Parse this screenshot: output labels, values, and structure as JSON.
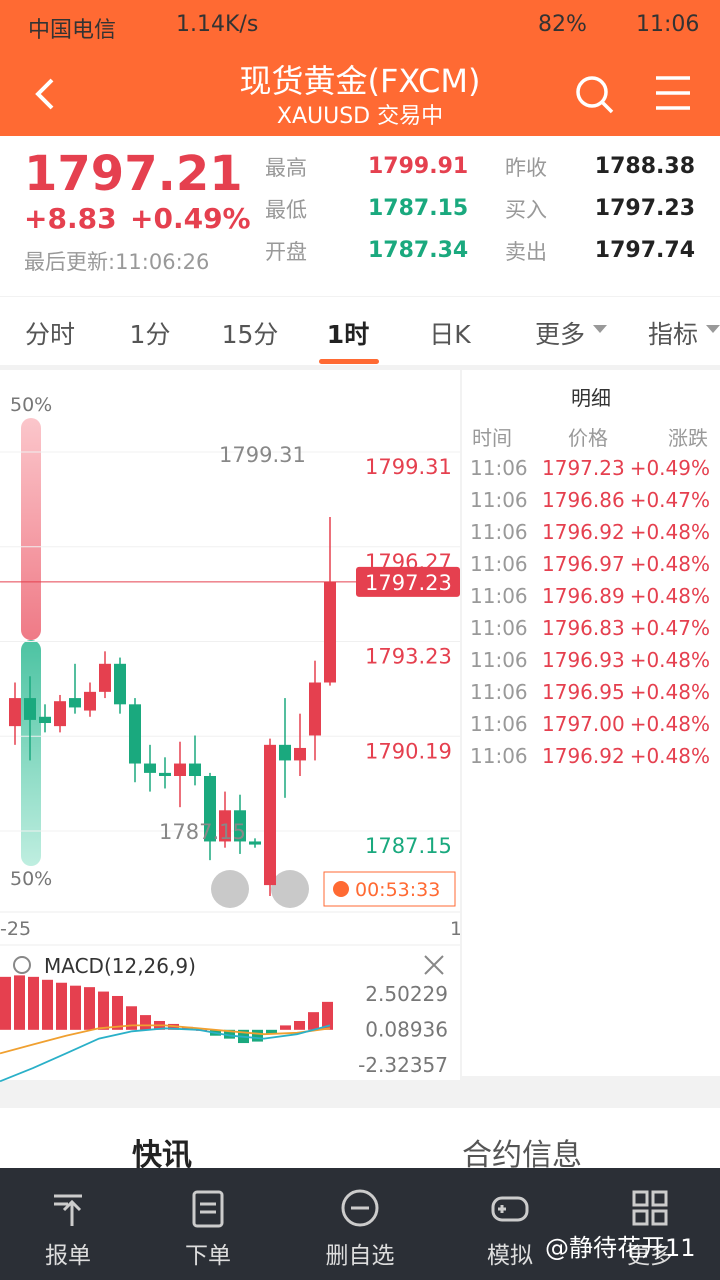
{
  "status_bar": {
    "carrier": "中国电信",
    "speed": "1.14K/s",
    "battery": "82%",
    "time": "11:06"
  },
  "header": {
    "title": "现货黄金(FXCM)",
    "subtitle": "XAUUSD 交易中"
  },
  "quote": {
    "price": "1797.21",
    "change": "+8.83",
    "change_pct": "+0.49%",
    "updated": "最后更新:11:06:26",
    "stats": [
      {
        "label": "最高",
        "value": "1799.91"
      },
      {
        "label": "最低",
        "value": "1787.15"
      },
      {
        "label": "开盘",
        "value": "1787.34"
      },
      {
        "label": "昨收",
        "value": "1788.38"
      },
      {
        "label": "买入",
        "value": "1797.23"
      },
      {
        "label": "卖出",
        "value": "1797.74"
      }
    ]
  },
  "tabs": [
    "分时",
    "1分",
    "15分",
    "1时",
    "日K",
    "更多",
    "指标"
  ],
  "chart": {
    "type": "candlestick",
    "ratio_top": "50%",
    "ratio_bottom": "50%",
    "price_ticks": [
      1799.31,
      1796.27,
      1793.23,
      1790.19,
      1787.15
    ],
    "current_price": 1797.23,
    "high_label": "1799.31",
    "low_label": "1787.15",
    "countdown": "00:53:33",
    "x_labels": [
      "-25",
      "1"
    ],
    "candles": [
      [
        1792.6,
        1793.5,
        1794.0,
        1792.0
      ],
      [
        1793.5,
        1792.8,
        1794.2,
        1791.5
      ],
      [
        1792.9,
        1792.7,
        1793.3,
        1792.4
      ],
      [
        1792.6,
        1793.4,
        1793.6,
        1792.4
      ],
      [
        1793.5,
        1793.2,
        1794.6,
        1793.0
      ],
      [
        1793.1,
        1793.7,
        1794.0,
        1792.9
      ],
      [
        1793.7,
        1794.6,
        1795.0,
        1793.5
      ],
      [
        1794.6,
        1793.3,
        1794.8,
        1793.0
      ],
      [
        1793.3,
        1791.4,
        1793.5,
        1790.8
      ],
      [
        1791.4,
        1791.1,
        1792.0,
        1790.5
      ],
      [
        1791.1,
        1791.0,
        1791.6,
        1790.6
      ],
      [
        1791.0,
        1791.4,
        1792.1,
        1790.0
      ],
      [
        1791.4,
        1791.0,
        1792.3,
        1790.7
      ],
      [
        1791.0,
        1788.9,
        1791.1,
        1788.3
      ],
      [
        1788.9,
        1789.9,
        1790.5,
        1788.7
      ],
      [
        1789.9,
        1788.9,
        1790.4,
        1788.5
      ],
      [
        1788.9,
        1788.8,
        1789.0,
        1788.7
      ],
      [
        1787.5,
        1792.0,
        1792.2,
        1787.15
      ],
      [
        1792.0,
        1791.5,
        1793.5,
        1790.3
      ],
      [
        1791.5,
        1791.9,
        1793.0,
        1791.0
      ],
      [
        1792.3,
        1794.0,
        1794.7,
        1791.5
      ],
      [
        1794.0,
        1797.23,
        1799.31,
        1793.9
      ]
    ]
  },
  "detail": {
    "title": "明细",
    "columns": [
      "时间",
      "价格",
      "涨跌"
    ],
    "rows": [
      [
        "11:06",
        "1797.23",
        "+0.49%"
      ],
      [
        "11:06",
        "1796.86",
        "+0.47%"
      ],
      [
        "11:06",
        "1796.92",
        "+0.48%"
      ],
      [
        "11:06",
        "1796.97",
        "+0.48%"
      ],
      [
        "11:06",
        "1796.89",
        "+0.48%"
      ],
      [
        "11:06",
        "1796.83",
        "+0.47%"
      ],
      [
        "11:06",
        "1796.93",
        "+0.48%"
      ],
      [
        "11:06",
        "1796.95",
        "+0.48%"
      ],
      [
        "11:06",
        "1797.00",
        "+0.48%"
      ],
      [
        "11:06",
        "1796.92",
        "+0.48%"
      ]
    ]
  },
  "macd": {
    "title": "MACD(12,26,9)",
    "ticks": [
      2.50229,
      0.08936,
      -2.32357
    ],
    "histogram": [
      3.6,
      3.7,
      3.6,
      3.4,
      3.2,
      3.0,
      2.9,
      2.6,
      2.3,
      1.6,
      1.0,
      0.6,
      0.4,
      0.2,
      0,
      -0.4,
      -0.6,
      -0.9,
      -0.8,
      -0.3,
      0.3,
      0.6,
      1.2,
      1.9
    ],
    "dif": [
      -3.5,
      -2.6,
      -1.6,
      -0.6,
      -0.1,
      0.1,
      0.0,
      -0.4,
      -0.6,
      -0.3,
      0.3
    ],
    "dea": [
      -1.6,
      -1.0,
      -0.4,
      0.1,
      0.3,
      0.3,
      0.1,
      -0.1,
      -0.3,
      -0.2,
      0.1
    ]
  },
  "sections": [
    "快讯",
    "合约信息"
  ],
  "nav": [
    "报单",
    "下单",
    "删自选",
    "模拟",
    "更多"
  ],
  "watermark": "@静待花开11"
}
